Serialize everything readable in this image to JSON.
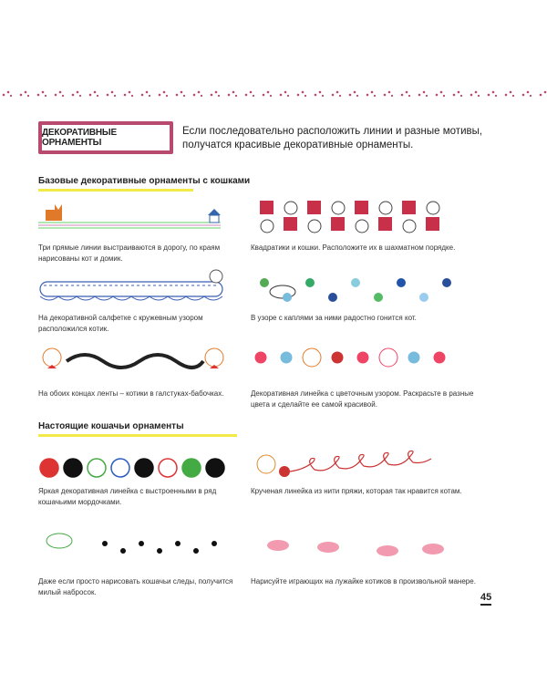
{
  "header": {
    "title": "ДЕКОРАТИВНЫЕ ОРНАМЕНТЫ",
    "intro": "Если последовательно расположить линии и разные мотивы, получатся красивые декоративные орнаменты.",
    "accent": "#b84a6f",
    "highlight": "#f3ea4a"
  },
  "section1": {
    "heading": "Базовые декоративные орнаменты с кошками",
    "items": [
      {
        "caption": "Три прямые линии выстраиваются в дорогу, по краям нарисованы кот и домик."
      },
      {
        "caption": "Квадратики и кошки. Расположите их в шахматном порядке."
      },
      {
        "caption": "На декоративной салфетке с кружевным узором расположился котик."
      },
      {
        "caption": "В узоре с каплями за ними радостно гонится кот."
      },
      {
        "caption": "На обоих концах ленты – котики в галстуках-бабочках."
      },
      {
        "caption": "Декоративная линейка с цветочным узором. Раскрасьте в разные цвета и сделайте ее самой красивой."
      }
    ]
  },
  "section2": {
    "heading": "Настоящие кошачьи орнаменты",
    "items": [
      {
        "caption": "Яркая декоративная линейка с выстроенными в ряд кошачьими мордочками."
      },
      {
        "caption": "Крученая линейка из нити пряжи, которая так нравится котам."
      },
      {
        "caption": "Даже если просто нарисовать кошачьи следы, получится милый набросок."
      },
      {
        "caption": "Нарисуйте играющих на лужайке котиков в произвольной манере."
      }
    ]
  },
  "page_number": "45"
}
